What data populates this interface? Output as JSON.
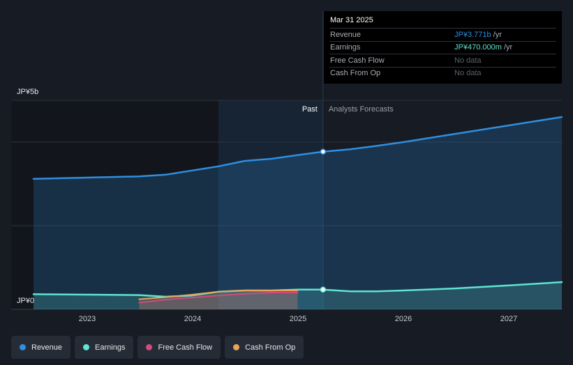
{
  "chart_data": {
    "type": "area",
    "x_range": [
      2022.5,
      2027.5
    ],
    "ylim": [
      0,
      5
    ],
    "y_unit": "JP¥ billions",
    "y_tick_labels": [
      "JP¥5b",
      "JP¥0"
    ],
    "x_tick_labels": [
      "2023",
      "2024",
      "2025",
      "2026",
      "2027"
    ],
    "x_ticks": [
      2023,
      2024,
      2025,
      2026,
      2027
    ],
    "past_label": "Past",
    "forecast_label": "Analysts Forecasts",
    "divider_x": 2025.24,
    "grid": true,
    "series": [
      {
        "name": "Revenue",
        "color": "#2f8fe0",
        "x": [
          2022.5,
          2023.0,
          2023.5,
          2023.75,
          2024.0,
          2024.25,
          2024.5,
          2024.75,
          2025.0,
          2025.24,
          2025.5,
          2025.75,
          2026.0,
          2026.5,
          2027.0,
          2027.5
        ],
        "values": [
          3.12,
          3.15,
          3.18,
          3.22,
          3.32,
          3.42,
          3.55,
          3.6,
          3.69,
          3.771,
          3.83,
          3.91,
          4.0,
          4.2,
          4.4,
          4.6
        ]
      },
      {
        "name": "Earnings",
        "color": "#5fe5d0",
        "x": [
          2022.5,
          2023.0,
          2023.5,
          2023.75,
          2024.0,
          2024.25,
          2024.5,
          2024.75,
          2025.0,
          2025.24,
          2025.5,
          2025.75,
          2026.0,
          2026.5,
          2027.0,
          2027.5
        ],
        "values": [
          0.36,
          0.35,
          0.34,
          0.3,
          0.33,
          0.42,
          0.45,
          0.45,
          0.47,
          0.47,
          0.43,
          0.43,
          0.45,
          0.5,
          0.57,
          0.65
        ]
      },
      {
        "name": "Free Cash Flow",
        "color": "#d4497e",
        "x": [
          2023.5,
          2023.75,
          2024.0,
          2024.25,
          2024.5,
          2024.75,
          2025.0
        ],
        "values": [
          0.16,
          0.23,
          0.28,
          0.33,
          0.37,
          0.4,
          0.4
        ]
      },
      {
        "name": "Cash From Op",
        "color": "#e8a55a",
        "x": [
          2023.5,
          2023.75,
          2024.0,
          2024.25,
          2024.5,
          2024.75,
          2025.0
        ],
        "values": [
          0.24,
          0.29,
          0.35,
          0.42,
          0.45,
          0.45,
          0.45
        ]
      }
    ]
  },
  "tooltip": {
    "date": "Mar 31 2025",
    "rows": [
      {
        "label": "Revenue",
        "value": "JP¥3.771b",
        "unit": " /yr",
        "kind": "rev"
      },
      {
        "label": "Earnings",
        "value": "JP¥470.000m",
        "unit": " /yr",
        "kind": "earn"
      },
      {
        "label": "Free Cash Flow",
        "value": "No data",
        "unit": "",
        "kind": "nodata"
      },
      {
        "label": "Cash From Op",
        "value": "No data",
        "unit": "",
        "kind": "nodata"
      }
    ]
  },
  "legend": [
    {
      "label": "Revenue",
      "color": "#2f8fe0"
    },
    {
      "label": "Earnings",
      "color": "#5fe5d0"
    },
    {
      "label": "Free Cash Flow",
      "color": "#d4497e"
    },
    {
      "label": "Cash From Op",
      "color": "#e8a55a"
    }
  ]
}
